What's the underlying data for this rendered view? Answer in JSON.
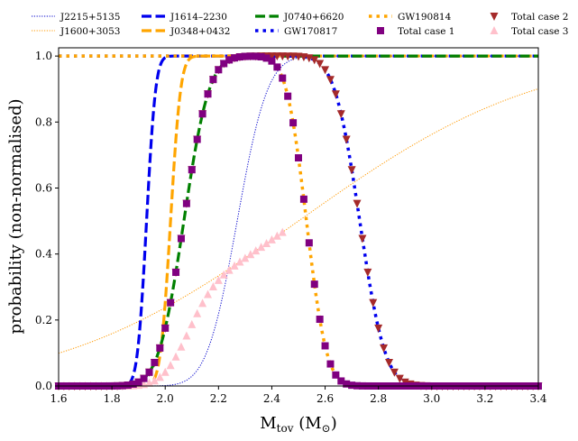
{
  "chart_data": {
    "type": "line",
    "title": "",
    "xlabel": "M",
    "xlabel_sub": "tov",
    "xlabel_unit_open": " (M",
    "xlabel_unit_sym": "⊙",
    "xlabel_unit_close": ")",
    "ylabel": "probability (non-normalised)",
    "xlim": [
      1.6,
      3.4
    ],
    "ylim": [
      0.0,
      1.025
    ],
    "xticks": [
      "1.6",
      "1.8",
      "2.0",
      "2.2",
      "2.4",
      "2.6",
      "2.8",
      "3.0",
      "3.2",
      "3.4"
    ],
    "yticks": [
      "0.0",
      "0.2",
      "0.4",
      "0.6",
      "0.8",
      "1.0"
    ],
    "legend_position": "top, above plot",
    "series": [
      {
        "name": "J2215+5135",
        "kind": "cdf",
        "mu": 2.27,
        "sigma": 0.09,
        "color": "#0000cc",
        "style": "dotted-thin"
      },
      {
        "name": "J1600+3053",
        "kind": "cdf",
        "mu": 2.5,
        "sigma": 0.7,
        "color": "#ff9900",
        "style": "dotted-thin"
      },
      {
        "name": "J1614–2230",
        "kind": "cdf",
        "mu": 1.93,
        "sigma": 0.027,
        "color": "#0000ee",
        "style": "dashed-thick"
      },
      {
        "name": "J0348+0432",
        "kind": "cdf",
        "mu": 2.02,
        "sigma": 0.03,
        "color": "#ffa500",
        "style": "dashed-thick"
      },
      {
        "name": "J0740+6620",
        "kind": "cdf",
        "mu": 2.07,
        "sigma": 0.075,
        "color": "#008000",
        "style": "dashed-thick"
      },
      {
        "name": "GW170817",
        "kind": "survival",
        "mu": 2.73,
        "sigma": 0.075,
        "color": "#0000ee",
        "style": "dotted-thick"
      },
      {
        "name": "GW190814",
        "kind": "survival",
        "mu": 2.53,
        "sigma": 0.06,
        "color": "#ffa500",
        "style": "dotted-thick"
      },
      {
        "name": "Total case 1",
        "kind": "product",
        "factors": [
          "J0740+6620",
          "GW190814"
        ],
        "color": "#800080",
        "style": "marker-square"
      },
      {
        "name": "Total case 2",
        "kind": "product",
        "factors": [
          "J0740+6620",
          "GW170817"
        ],
        "color": "#a52a2a",
        "style": "marker-triangle-down"
      },
      {
        "name": "Total case 3",
        "kind": "product",
        "factors": [
          "J0740+6620",
          "J1600+3053"
        ],
        "color": "#ffc0cb",
        "style": "marker-triangle-up",
        "x_max": 2.45
      }
    ],
    "marker_x": [
      1.6,
      1.62,
      1.64,
      1.66,
      1.68,
      1.7,
      1.72,
      1.74,
      1.76,
      1.78,
      1.8,
      1.82,
      1.84,
      1.86,
      1.88,
      1.9,
      1.92,
      1.94,
      1.96,
      1.98,
      2.0,
      2.02,
      2.04,
      2.06,
      2.08,
      2.1,
      2.12,
      2.14,
      2.16,
      2.18,
      2.2,
      2.22,
      2.24,
      2.26,
      2.28,
      2.3,
      2.32,
      2.34,
      2.36,
      2.38,
      2.4,
      2.42,
      2.44,
      2.46,
      2.48,
      2.5,
      2.52,
      2.54,
      2.56,
      2.58,
      2.6,
      2.62,
      2.64,
      2.66,
      2.68,
      2.7,
      2.72,
      2.74,
      2.76,
      2.78,
      2.8,
      2.82,
      2.84,
      2.86,
      2.88,
      2.9,
      2.92,
      2.94,
      2.96,
      2.98,
      3.0,
      3.02,
      3.04,
      3.06,
      3.08,
      3.1,
      3.12,
      3.14,
      3.16,
      3.18,
      3.2,
      3.22,
      3.24,
      3.26,
      3.28,
      3.3,
      3.32,
      3.34,
      3.36,
      3.38,
      3.4
    ]
  }
}
